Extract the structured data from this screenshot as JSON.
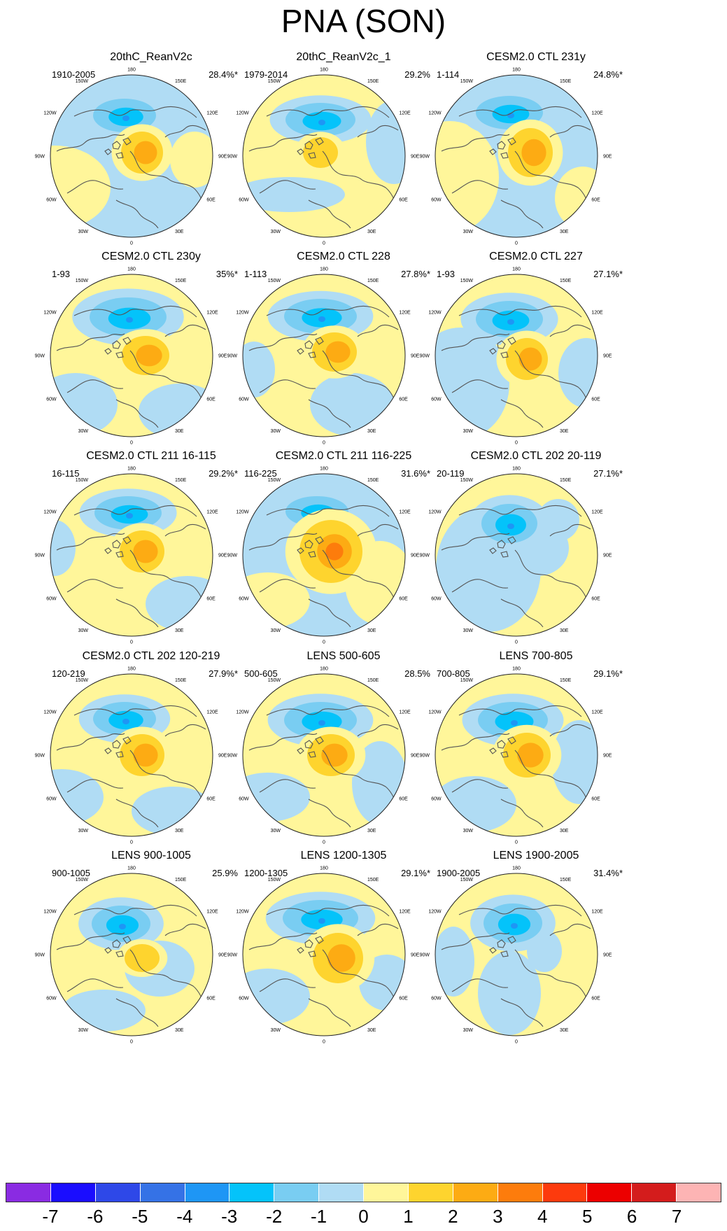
{
  "title": "PNA (SON)",
  "longitude_labels": [
    "180",
    "150E",
    "120E",
    "90E",
    "60E",
    "30E",
    "0",
    "30W",
    "60W",
    "90W",
    "120W",
    "150W"
  ],
  "panels": [
    {
      "title": "20thC_ReanV2c",
      "period": "1910-2005",
      "variance": "28.4%*"
    },
    {
      "title": "20thC_ReanV2c_1",
      "period": "1979-2014",
      "variance": "29.2%"
    },
    {
      "title": "CESM2.0 CTL 231y",
      "period": "1-114",
      "variance": "24.8%*"
    },
    {
      "title": "CESM2.0 CTL 230y",
      "period": "1-93",
      "variance": "35%*"
    },
    {
      "title": "CESM2.0 CTL 228",
      "period": "1-113",
      "variance": "27.8%*"
    },
    {
      "title": "CESM2.0 CTL 227",
      "period": "1-93",
      "variance": "27.1%*"
    },
    {
      "title": "CESM2.0 CTL 211 16-115",
      "period": "16-115",
      "variance": "29.2%*"
    },
    {
      "title": "CESM2.0 CTL 211 116-225",
      "period": "116-225",
      "variance": "31.6%*"
    },
    {
      "title": "CESM2.0 CTL 202 20-119",
      "period": "20-119",
      "variance": "27.1%*"
    },
    {
      "title": "CESM2.0 CTL 202 120-219",
      "period": "120-219",
      "variance": "27.9%*"
    },
    {
      "title": "LENS 500-605",
      "period": "500-605",
      "variance": "28.5%"
    },
    {
      "title": "LENS 700-805",
      "period": "700-805",
      "variance": "29.1%*"
    },
    {
      "title": "LENS 900-1005",
      "period": "900-1005",
      "variance": "25.9%"
    },
    {
      "title": "LENS 1200-1305",
      "period": "1200-1305",
      "variance": "29.1%*"
    },
    {
      "title": "LENS 1900-2005",
      "period": "1900-2005",
      "variance": "31.4%*"
    }
  ],
  "colorbar": {
    "colors": [
      "#8a2be2",
      "#1a0dff",
      "#2e48e8",
      "#3572e6",
      "#1e96f5",
      "#04c3fa",
      "#79cdf2",
      "#b0dcf4",
      "#fff69a",
      "#fed42e",
      "#fdab13",
      "#fd7c0c",
      "#fd3a0d",
      "#ec0000",
      "#d41c1c",
      "#fdb4b4"
    ],
    "ticks": [
      "-7",
      "-6",
      "-5",
      "-4",
      "-3",
      "-2",
      "-1",
      "0",
      "1",
      "2",
      "3",
      "4",
      "5",
      "6",
      "7"
    ]
  }
}
